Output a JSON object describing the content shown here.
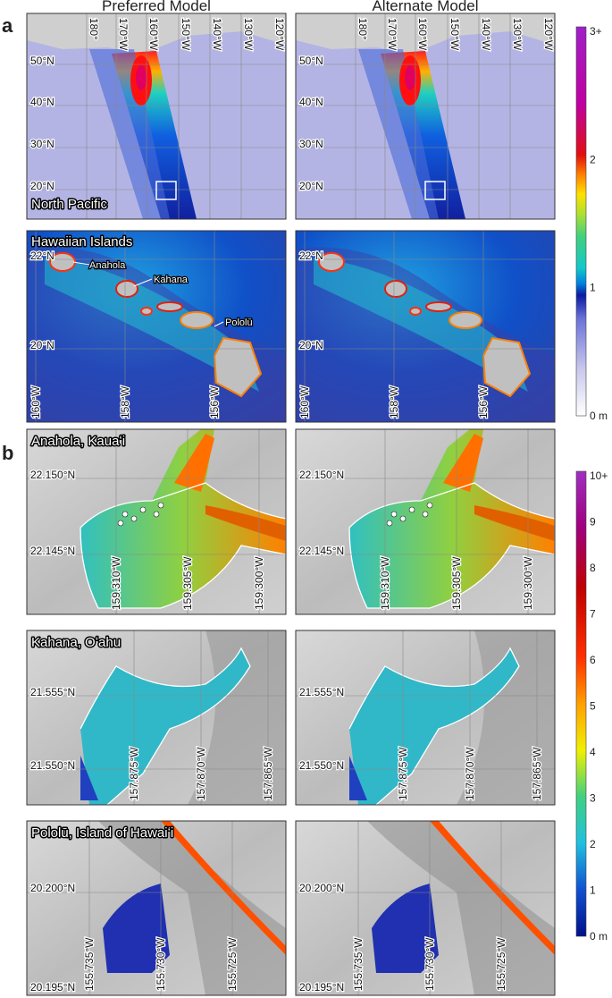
{
  "columns": [
    "Preferred Model",
    "Alternate Model"
  ],
  "panel_a": {
    "label": "a",
    "maps": [
      {
        "title": "North Pacific",
        "lon_labels": [
          "180°",
          "170°W",
          "160°W",
          "150°W",
          "140°W",
          "130°W",
          "120°W"
        ],
        "lat_labels": [
          "50°N",
          "40°N",
          "30°N",
          "20°N"
        ]
      },
      {
        "title": "Hawaiian Islands",
        "places": [
          "Anahola",
          "Kahana",
          "Pololū"
        ],
        "lat_labels": [
          "22°N",
          "20°N"
        ],
        "lon_labels": [
          "160°W",
          "158°W",
          "156°W"
        ]
      }
    ],
    "colorbar": {
      "ticks": [
        "3+",
        "2",
        "1",
        "0 m"
      ]
    }
  },
  "panel_b": {
    "label": "b",
    "maps": [
      {
        "title": "Anahola, Kauaʻi",
        "lat_labels": [
          "22.150°N",
          "22.145°N"
        ],
        "lon_labels": [
          "159.310°W",
          "159.305°W",
          "159.300°W"
        ]
      },
      {
        "title": "Kahana, Oʻahu",
        "lat_labels": [
          "21.555°N",
          "21.550°N"
        ],
        "lon_labels": [
          "157.875°W",
          "157.870°W",
          "157.865°W"
        ]
      },
      {
        "title": "Pololū, Island of Hawaiʻi",
        "lat_labels": [
          "20.200°N",
          "20.195°N"
        ],
        "lon_labels": [
          "155.735°W",
          "155.730°W",
          "155.725°W"
        ]
      }
    ],
    "colorbar": {
      "ticks": [
        "10+",
        "9",
        "8",
        "7",
        "6",
        "5",
        "4",
        "3",
        "2",
        "1",
        "0 m"
      ]
    }
  }
}
